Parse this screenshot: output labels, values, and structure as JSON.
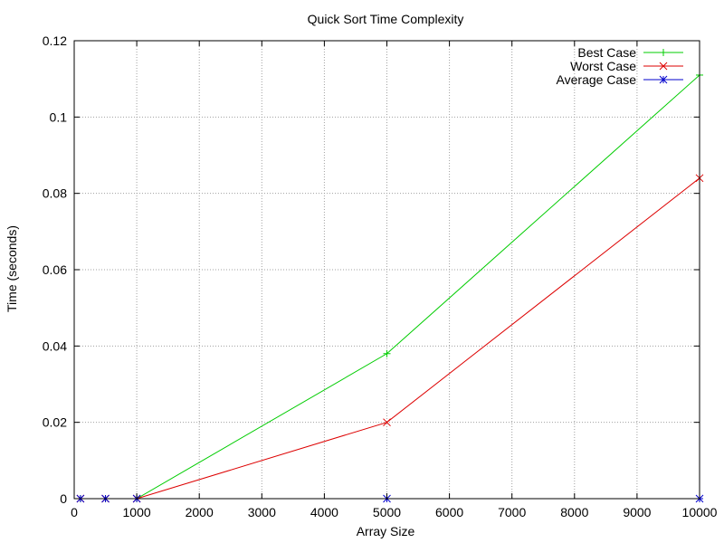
{
  "chart_data": {
    "type": "line",
    "title": "Quick Sort Time Complexity",
    "xlabel": "Array Size",
    "ylabel": "Time (seconds)",
    "xlim": [
      0,
      10000
    ],
    "ylim": [
      0,
      0.12
    ],
    "xticks": [
      0,
      1000,
      2000,
      3000,
      4000,
      5000,
      6000,
      7000,
      8000,
      9000,
      10000
    ],
    "yticks": [
      0,
      0.02,
      0.04,
      0.06,
      0.08,
      0.1,
      0.12
    ],
    "ytick_labels": [
      "0",
      "0.02",
      "0.04",
      "0.06",
      "0.08",
      "0.1",
      "0.12"
    ],
    "grid": true,
    "legend_position": "top-right",
    "series": [
      {
        "name": "Best Case",
        "color": "#00cc00",
        "marker": "plus",
        "x": [
          100,
          500,
          1000,
          5000,
          10000
        ],
        "y": [
          0,
          0,
          0,
          0.038,
          0.111
        ]
      },
      {
        "name": "Worst Case",
        "color": "#dd0000",
        "marker": "cross",
        "x": [
          100,
          500,
          1000,
          5000,
          10000
        ],
        "y": [
          0,
          0,
          0,
          0.02,
          0.084
        ]
      },
      {
        "name": "Average Case",
        "color": "#0000cc",
        "marker": "star",
        "x": [
          100,
          500,
          1000,
          5000,
          10000
        ],
        "y": [
          0,
          0,
          0,
          0,
          0
        ]
      }
    ]
  }
}
